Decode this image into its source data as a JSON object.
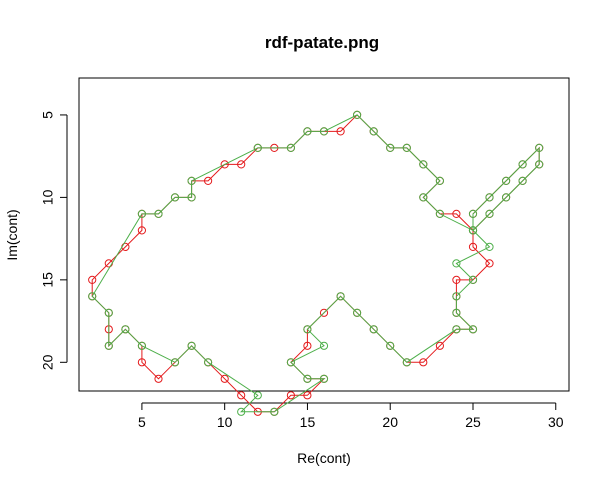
{
  "chart_data": {
    "type": "scatter",
    "title": "rdf-patate.png",
    "xlabel": "Re(cont)",
    "ylabel": "Im(cont)",
    "xlim": [
      1.2,
      30.8
    ],
    "ylim": [
      21.74,
      2.76
    ],
    "y_reversed": true,
    "xticks": [
      5,
      10,
      15,
      20,
      25,
      30
    ],
    "yticks": [
      5,
      10,
      15,
      20
    ],
    "grid": false,
    "legend": "none",
    "colors": {
      "red": "#e41a1c",
      "green": "#4daf4a",
      "dark_green": "#2f9e1a"
    },
    "series": [
      {
        "color": "red",
        "closed": true,
        "points": [
          [
            16,
            6
          ],
          [
            17,
            6
          ],
          [
            18,
            5
          ],
          [
            19,
            6
          ],
          [
            20,
            7
          ],
          [
            21,
            7
          ],
          [
            22,
            8
          ],
          [
            23,
            9
          ],
          [
            22,
            10
          ],
          [
            23,
            11
          ],
          [
            24,
            11
          ],
          [
            25,
            12
          ],
          [
            26,
            11
          ],
          [
            27,
            10
          ],
          [
            28,
            9
          ],
          [
            29,
            8
          ],
          [
            29,
            7
          ],
          [
            28,
            8
          ],
          [
            27,
            9
          ],
          [
            26,
            10
          ],
          [
            25,
            11
          ],
          [
            25,
            12
          ],
          [
            25,
            13
          ],
          [
            26,
            14
          ],
          [
            25,
            15
          ],
          [
            24,
            15
          ],
          [
            24,
            16
          ],
          [
            24,
            17
          ],
          [
            25,
            18
          ],
          [
            24,
            18
          ],
          [
            23,
            19
          ],
          [
            22,
            20
          ],
          [
            21,
            20
          ],
          [
            20,
            19
          ],
          [
            19,
            18
          ],
          [
            18,
            17
          ],
          [
            17,
            16
          ],
          [
            16,
            17
          ],
          [
            15,
            18
          ],
          [
            15,
            19
          ],
          [
            14,
            20
          ],
          [
            15,
            21
          ],
          [
            16,
            21
          ],
          [
            15,
            22
          ],
          [
            14,
            22
          ],
          [
            13,
            23
          ],
          [
            12,
            23
          ],
          [
            11,
            22
          ],
          [
            10,
            21
          ],
          [
            9,
            20
          ],
          [
            8,
            19
          ],
          [
            7,
            20
          ],
          [
            6,
            21
          ],
          [
            5,
            20
          ],
          [
            5,
            19
          ],
          [
            4,
            18
          ],
          [
            3,
            19
          ],
          [
            3,
            18
          ],
          [
            3,
            17
          ],
          [
            2,
            16
          ],
          [
            2,
            15
          ],
          [
            3,
            14
          ],
          [
            4,
            13
          ],
          [
            5,
            12
          ],
          [
            5,
            11
          ],
          [
            6,
            11
          ],
          [
            7,
            10
          ],
          [
            8,
            10
          ],
          [
            8,
            9
          ],
          [
            9,
            9
          ],
          [
            10,
            8
          ],
          [
            11,
            8
          ],
          [
            12,
            7
          ],
          [
            13,
            7
          ],
          [
            14,
            7
          ],
          [
            15,
            6
          ]
        ]
      },
      {
        "color": "green",
        "closed": true,
        "points": [
          [
            16,
            6
          ],
          [
            18,
            5
          ],
          [
            19,
            6
          ],
          [
            20,
            7
          ],
          [
            21,
            7
          ],
          [
            22,
            8
          ],
          [
            23,
            9
          ],
          [
            22,
            10
          ],
          [
            23,
            11
          ],
          [
            25,
            12
          ],
          [
            26,
            11
          ],
          [
            27,
            10
          ],
          [
            28,
            9
          ],
          [
            29,
            8
          ],
          [
            29,
            7
          ],
          [
            28,
            8
          ],
          [
            27,
            9
          ],
          [
            26,
            10
          ],
          [
            25,
            11
          ],
          [
            25,
            12
          ],
          [
            26,
            13
          ],
          [
            24,
            14
          ],
          [
            25,
            15
          ],
          [
            24,
            16
          ],
          [
            24,
            17
          ],
          [
            25,
            18
          ],
          [
            24,
            18
          ],
          [
            21,
            20
          ],
          [
            20,
            19
          ],
          [
            19,
            18
          ],
          [
            18,
            17
          ],
          [
            17,
            16
          ],
          [
            15,
            18
          ],
          [
            16,
            19
          ],
          [
            14,
            20
          ],
          [
            15,
            21
          ],
          [
            16,
            21
          ],
          [
            13,
            23
          ],
          [
            11,
            23
          ],
          [
            12,
            22
          ],
          [
            9,
            20
          ],
          [
            8,
            19
          ],
          [
            7,
            20
          ],
          [
            5,
            19
          ],
          [
            4,
            18
          ],
          [
            3,
            19
          ],
          [
            3,
            17
          ],
          [
            2,
            16
          ],
          [
            5,
            11
          ],
          [
            6,
            11
          ],
          [
            7,
            10
          ],
          [
            8,
            10
          ],
          [
            8,
            9
          ],
          [
            12,
            7
          ],
          [
            14,
            7
          ],
          [
            15,
            6
          ]
        ]
      }
    ]
  }
}
